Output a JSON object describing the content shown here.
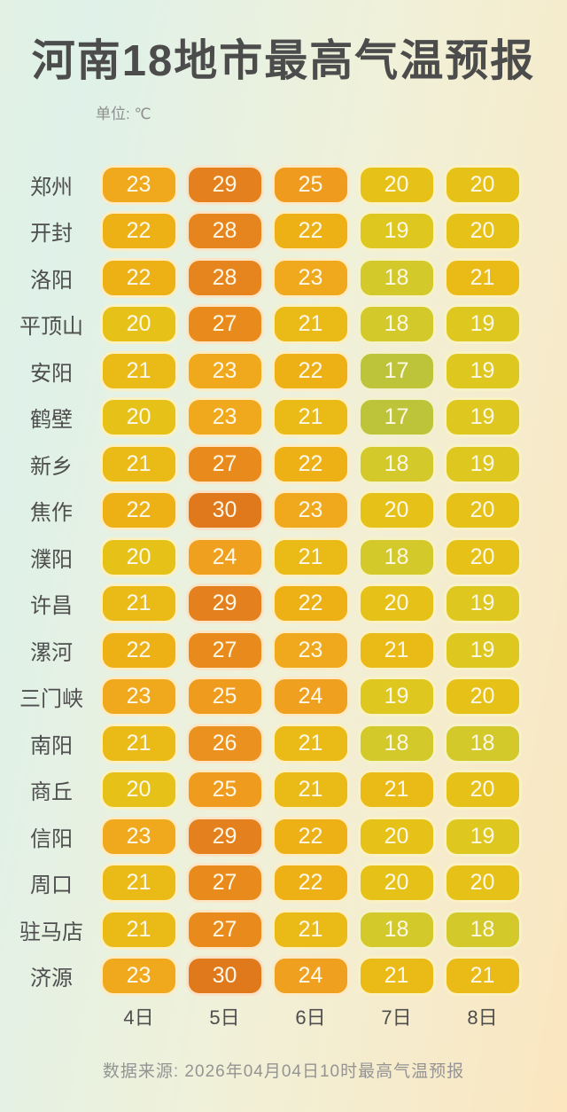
{
  "header": {
    "title": "河南18地市最高气温预报",
    "unit_label": "单位: ℃"
  },
  "chart_data": {
    "type": "heatmap",
    "title": "河南18地市最高气温预报",
    "unit": "℃",
    "columns": [
      "4日",
      "5日",
      "6日",
      "7日",
      "8日"
    ],
    "rows": [
      {
        "city": "郑州",
        "values": [
          23,
          29,
          25,
          20,
          20
        ]
      },
      {
        "city": "开封",
        "values": [
          22,
          28,
          22,
          19,
          20
        ]
      },
      {
        "city": "洛阳",
        "values": [
          22,
          28,
          23,
          18,
          21
        ]
      },
      {
        "city": "平顶山",
        "values": [
          20,
          27,
          21,
          18,
          19
        ]
      },
      {
        "city": "安阳",
        "values": [
          21,
          23,
          22,
          17,
          19
        ]
      },
      {
        "city": "鹤壁",
        "values": [
          20,
          23,
          21,
          17,
          19
        ]
      },
      {
        "city": "新乡",
        "values": [
          21,
          27,
          22,
          18,
          19
        ]
      },
      {
        "city": "焦作",
        "values": [
          22,
          30,
          23,
          20,
          20
        ]
      },
      {
        "city": "濮阳",
        "values": [
          20,
          24,
          21,
          18,
          20
        ]
      },
      {
        "city": "许昌",
        "values": [
          21,
          29,
          22,
          20,
          19
        ]
      },
      {
        "city": "漯河",
        "values": [
          22,
          27,
          23,
          21,
          19
        ]
      },
      {
        "city": "三门峡",
        "values": [
          23,
          25,
          24,
          19,
          20
        ]
      },
      {
        "city": "南阳",
        "values": [
          21,
          26,
          21,
          18,
          18
        ]
      },
      {
        "city": "商丘",
        "values": [
          20,
          25,
          21,
          21,
          20
        ]
      },
      {
        "city": "信阳",
        "values": [
          23,
          29,
          22,
          20,
          19
        ]
      },
      {
        "city": "周口",
        "values": [
          21,
          27,
          22,
          20,
          20
        ]
      },
      {
        "city": "驻马店",
        "values": [
          21,
          27,
          21,
          18,
          18
        ]
      },
      {
        "city": "济源",
        "values": [
          23,
          30,
          24,
          21,
          21
        ]
      }
    ],
    "value_range": [
      17,
      30
    ],
    "legend_position": "none",
    "grid": false
  },
  "temp_colors": {
    "17": "#BEC43A",
    "18": "#D3C92A",
    "19": "#DEC81F",
    "20": "#E6C219",
    "21": "#EABA16",
    "22": "#EDB015",
    "23": "#F0A81C",
    "24": "#EFA01E",
    "25": "#EE9B1E",
    "26": "#EB9120",
    "27": "#E98B1C",
    "28": "#E6851E",
    "29": "#E4801D",
    "30": "#E0781C"
  },
  "style_colors": {
    "background_left": "#DFF1E9",
    "background_mid": "#F0F1D9",
    "background_right": "#FBE6C0",
    "title_text": "#4C4C4C",
    "cell_text": "#FDF8E8",
    "cell_border": "#FFFCF0",
    "footer_text": "#949494"
  },
  "footer": {
    "source": "数据来源: 2026年04月04日10时最高气温预报"
  }
}
